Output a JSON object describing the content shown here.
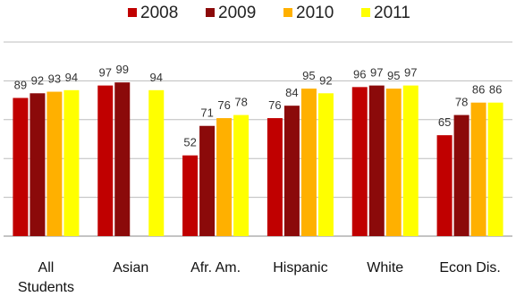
{
  "chart_data": {
    "type": "bar",
    "categories": [
      [
        "All",
        "Students"
      ],
      [
        "Asian"
      ],
      [
        "Afr. Am."
      ],
      [
        "Hispanic"
      ],
      [
        "White"
      ],
      [
        "Econ Dis."
      ]
    ],
    "series": [
      {
        "name": "2008",
        "color": "#c00000",
        "values": [
          89,
          97,
          52,
          76,
          96,
          65
        ]
      },
      {
        "name": "2009",
        "color": "#8b0a0a",
        "values": [
          92,
          99,
          71,
          84,
          97,
          78
        ]
      },
      {
        "name": "2010",
        "color": "#ffb000",
        "values": [
          93,
          null,
          76,
          95,
          95,
          86
        ]
      },
      {
        "name": "2011",
        "color": "#ffff00",
        "values": [
          94,
          94,
          78,
          92,
          97,
          86
        ]
      }
    ],
    "ylim": [
      0,
      125
    ],
    "grid": true,
    "legend_position": "top",
    "title": "",
    "xlabel": "",
    "ylabel": ""
  }
}
